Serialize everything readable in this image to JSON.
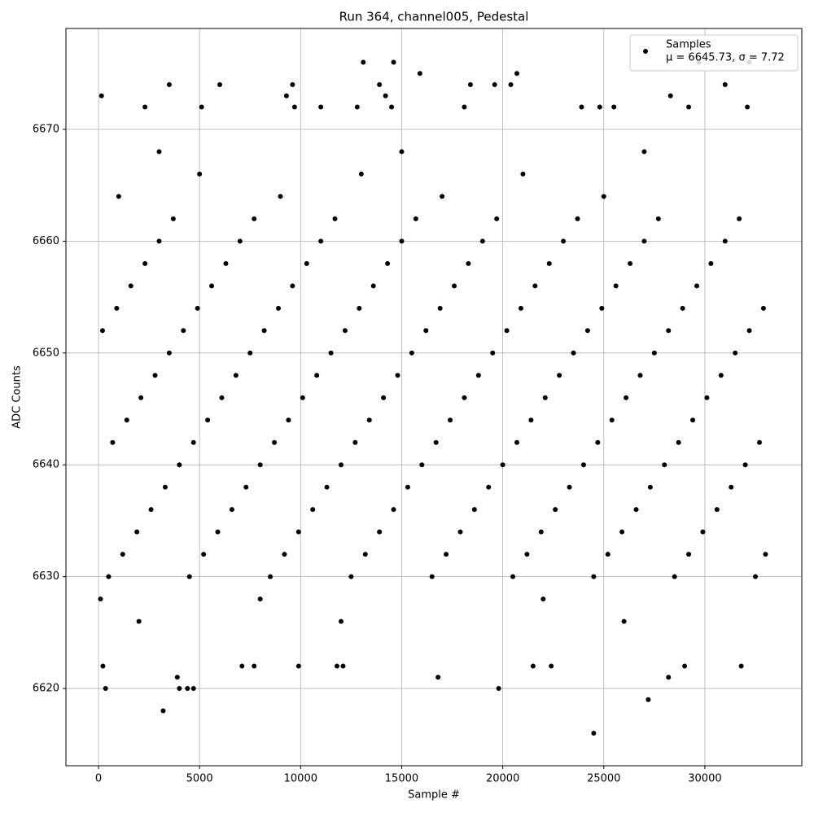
{
  "chart_data": {
    "type": "scatter",
    "title": "Run 364, channel005, Pedestal",
    "x_label": "Sample #",
    "y_label": "ADC Counts",
    "legend_note": "μ = 6645.73, σ = 7.72",
    "legend_position": "upper right",
    "grid": true,
    "xlim": [
      -1611,
      34795
    ],
    "ylim": [
      6613.09,
      6679.02
    ],
    "xticks": [
      0,
      5000,
      10000,
      15000,
      20000,
      25000,
      30000
    ],
    "yticks": [
      6620,
      6630,
      6640,
      6650,
      6660,
      6670
    ],
    "x": [
      500,
      4500,
      8500,
      12500,
      16500,
      20500,
      24500,
      28500,
      32500,
      1200,
      5200,
      9200,
      13200,
      17200,
      21200,
      25200,
      29200,
      33000,
      1900,
      5900,
      9900,
      13900,
      17900,
      21900,
      25900,
      29900,
      2600,
      6600,
      10600,
      14600,
      18600,
      22600,
      26600,
      30600,
      3300,
      7300,
      11300,
      15300,
      19300,
      23300,
      27300,
      31300,
      4000,
      8000,
      12000,
      16000,
      20000,
      24000,
      28000,
      32000,
      700,
      4700,
      8700,
      12700,
      16700,
      20700,
      24700,
      28700,
      32700,
      1400,
      5400,
      9400,
      13400,
      17400,
      21400,
      25400,
      29400,
      2100,
      6100,
      10100,
      14100,
      18100,
      22100,
      26100,
      30100,
      2800,
      6800,
      10800,
      14800,
      18800,
      22800,
      26800,
      30800,
      3500,
      7500,
      11500,
      15500,
      19500,
      23500,
      27500,
      31500,
      200,
      4200,
      8200,
      12200,
      16200,
      20200,
      24200,
      28200,
      32200,
      900,
      4900,
      8900,
      12900,
      16900,
      20900,
      24900,
      28900,
      32900,
      1600,
      5600,
      9600,
      13600,
      17600,
      21600,
      25600,
      29600,
      2300,
      6300,
      10300,
      14300,
      18300,
      22300,
      26300,
      30300,
      3000,
      7000,
      11000,
      15000,
      19000,
      23000,
      27000,
      31000,
      3700,
      7700,
      11700,
      15700,
      19700,
      23700,
      27700,
      31700,
      1000,
      9000,
      17000,
      25000,
      5000,
      13000,
      21000,
      3000,
      15000,
      27000,
      2000,
      12000,
      26000,
      100,
      8000,
      22000,
      3200,
      24500,
      27200,
      19800,
      350,
      4000,
      4400,
      4700,
      220,
      7100,
      7700,
      9900,
      11800,
      12100,
      21500,
      22400,
      29000,
      31800,
      16800,
      28200,
      3900,
      13100,
      14600,
      29700,
      32200,
      15900,
      20700,
      3500,
      6000,
      9600,
      13900,
      18400,
      19600,
      20400,
      31000,
      150,
      9300,
      14200,
      28300,
      2300,
      5100,
      9700,
      11000,
      12800,
      14500,
      18100,
      23900,
      24800,
      25500,
      29200,
      32100
    ],
    "series": [
      {
        "name": "Samples",
        "color": "#000000",
        "values": [
          6630,
          6630,
          6630,
          6630,
          6630,
          6630,
          6630,
          6630,
          6630,
          6632,
          6632,
          6632,
          6632,
          6632,
          6632,
          6632,
          6632,
          6632,
          6634,
          6634,
          6634,
          6634,
          6634,
          6634,
          6634,
          6634,
          6636,
          6636,
          6636,
          6636,
          6636,
          6636,
          6636,
          6636,
          6638,
          6638,
          6638,
          6638,
          6638,
          6638,
          6638,
          6638,
          6640,
          6640,
          6640,
          6640,
          6640,
          6640,
          6640,
          6640,
          6642,
          6642,
          6642,
          6642,
          6642,
          6642,
          6642,
          6642,
          6642,
          6644,
          6644,
          6644,
          6644,
          6644,
          6644,
          6644,
          6644,
          6646,
          6646,
          6646,
          6646,
          6646,
          6646,
          6646,
          6646,
          6648,
          6648,
          6648,
          6648,
          6648,
          6648,
          6648,
          6648,
          6650,
          6650,
          6650,
          6650,
          6650,
          6650,
          6650,
          6650,
          6652,
          6652,
          6652,
          6652,
          6652,
          6652,
          6652,
          6652,
          6652,
          6654,
          6654,
          6654,
          6654,
          6654,
          6654,
          6654,
          6654,
          6654,
          6656,
          6656,
          6656,
          6656,
          6656,
          6656,
          6656,
          6656,
          6658,
          6658,
          6658,
          6658,
          6658,
          6658,
          6658,
          6658,
          6660,
          6660,
          6660,
          6660,
          6660,
          6660,
          6660,
          6660,
          6662,
          6662,
          6662,
          6662,
          6662,
          6662,
          6662,
          6662,
          6664,
          6664,
          6664,
          6664,
          6666,
          6666,
          6666,
          6668,
          6668,
          6668,
          6626,
          6626,
          6626,
          6628,
          6628,
          6628,
          6618,
          6616,
          6619,
          6620,
          6620,
          6620,
          6620,
          6620,
          6622,
          6622,
          6622,
          6622,
          6622,
          6622,
          6622,
          6622,
          6622,
          6622,
          6621,
          6621,
          6621,
          6676,
          6676,
          6676,
          6676,
          6675,
          6675,
          6674,
          6674,
          6674,
          6674,
          6674,
          6674,
          6674,
          6674,
          6673,
          6673,
          6673,
          6673,
          6672,
          6672,
          6672,
          6672,
          6672,
          6672,
          6672,
          6672,
          6672,
          6672,
          6672,
          6672
        ]
      }
    ]
  }
}
